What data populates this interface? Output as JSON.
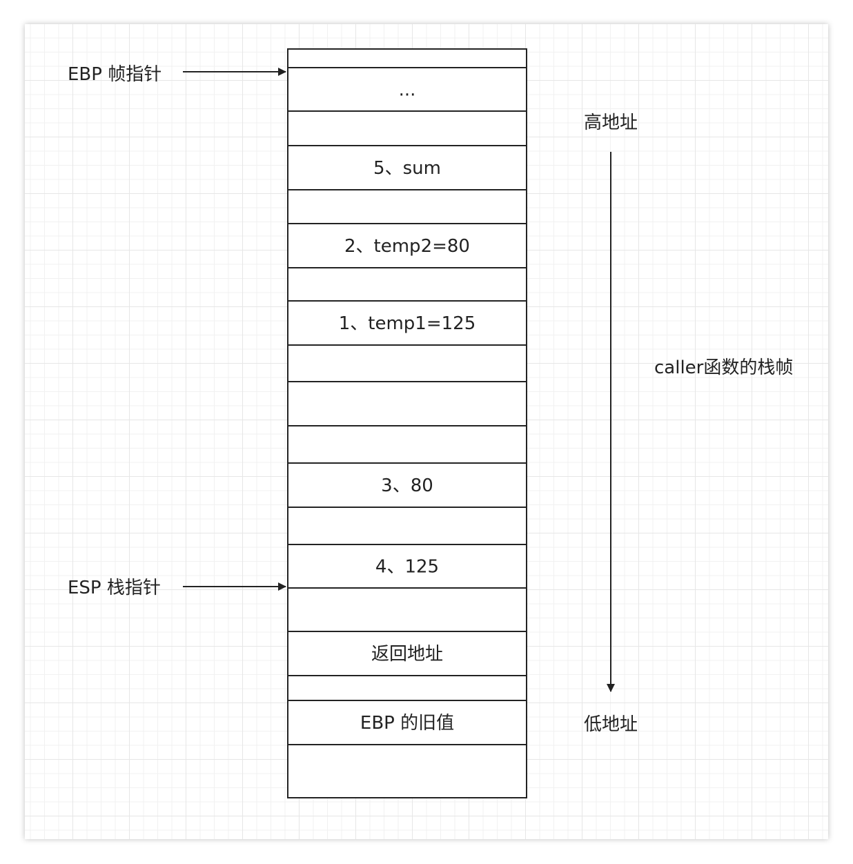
{
  "pointers": {
    "ebp": "EBP 帧指针",
    "esp": "ESP 栈指针"
  },
  "stack_cells": [
    {
      "id": "top-edge",
      "text": ""
    },
    {
      "id": "ellipsis",
      "text": "..."
    },
    {
      "id": "blank-1",
      "text": ""
    },
    {
      "id": "sum",
      "text": "5、sum"
    },
    {
      "id": "blank-2",
      "text": ""
    },
    {
      "id": "temp2",
      "text": "2、temp2=80"
    },
    {
      "id": "blank-3",
      "text": ""
    },
    {
      "id": "temp1",
      "text": "1、temp1=125"
    },
    {
      "id": "blank-4",
      "text": ""
    },
    {
      "id": "blank-5",
      "text": ""
    },
    {
      "id": "blank-6",
      "text": ""
    },
    {
      "id": "arg-80",
      "text": "3、80"
    },
    {
      "id": "blank-7",
      "text": ""
    },
    {
      "id": "arg-125",
      "text": "4、125"
    },
    {
      "id": "blank-8",
      "text": ""
    },
    {
      "id": "return-address",
      "text": "返回地址"
    },
    {
      "id": "blank-9",
      "text": ""
    },
    {
      "id": "old-ebp",
      "text": "EBP 的旧值"
    },
    {
      "id": "blank-10",
      "text": ""
    }
  ],
  "address_labels": {
    "high": "高地址",
    "low": "低地址"
  },
  "frame_label": "caller函数的栈帧"
}
